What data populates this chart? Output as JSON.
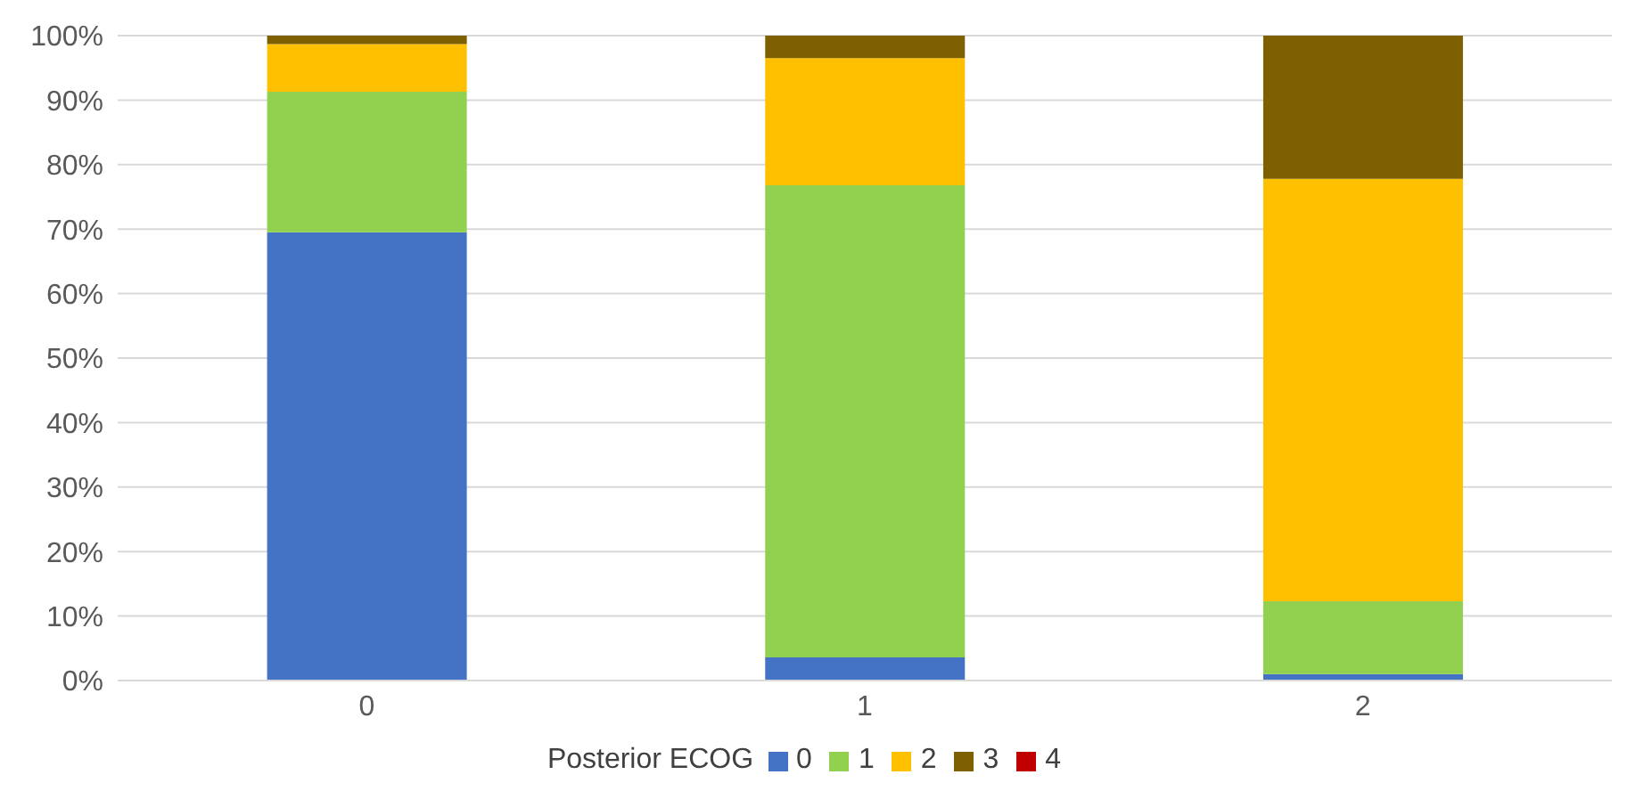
{
  "chart_data": {
    "type": "bar",
    "stacked": true,
    "categories": [
      "0",
      "1",
      "2"
    ],
    "series": [
      {
        "name": "0",
        "color": "#4472c4",
        "values": [
          69.5,
          3.6,
          1.0
        ]
      },
      {
        "name": "1",
        "color": "#92d050",
        "values": [
          21.8,
          73.2,
          11.3
        ]
      },
      {
        "name": "2",
        "color": "#ffc000",
        "values": [
          7.4,
          19.7,
          65.5
        ]
      },
      {
        "name": "3",
        "color": "#7f6000",
        "values": [
          1.3,
          3.5,
          22.2
        ]
      },
      {
        "name": "4",
        "color": "#c00000",
        "values": [
          0,
          0,
          0
        ]
      }
    ],
    "legend_title": "Posterior ECOG",
    "legend": "bottom",
    "grid": "y",
    "ylim": [
      0,
      100
    ],
    "yticks": [
      {
        "value": 0,
        "label": "0%"
      },
      {
        "value": 10,
        "label": "10%"
      },
      {
        "value": 20,
        "label": "20%"
      },
      {
        "value": 30,
        "label": "30%"
      },
      {
        "value": 40,
        "label": "40%"
      },
      {
        "value": 50,
        "label": "50%"
      },
      {
        "value": 60,
        "label": "60%"
      },
      {
        "value": 70,
        "label": "70%"
      },
      {
        "value": 80,
        "label": "80%"
      },
      {
        "value": 90,
        "label": "90%"
      },
      {
        "value": 100,
        "label": "100%"
      }
    ]
  }
}
